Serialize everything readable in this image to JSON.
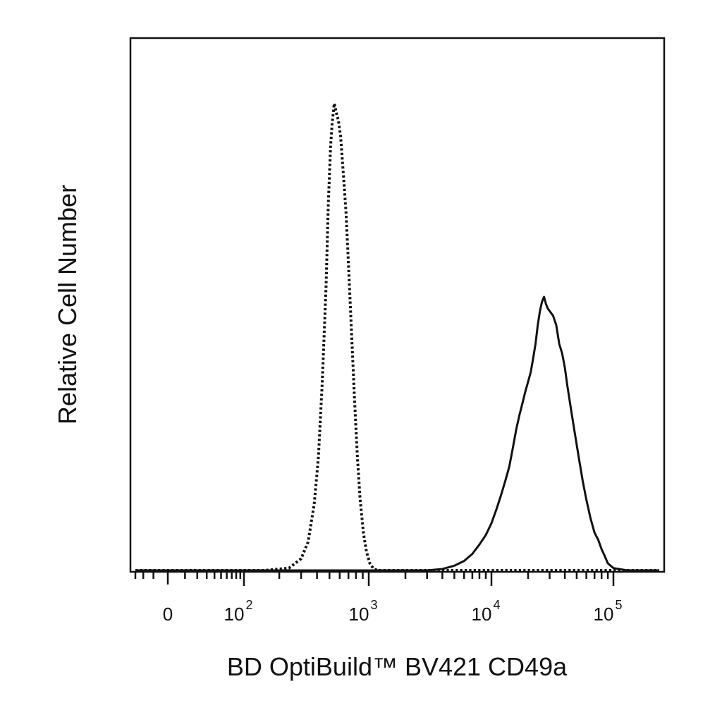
{
  "chart_data": {
    "type": "line",
    "title": "",
    "xlabel": "BD OptiBuild™  BV421 CD49a",
    "ylabel": "Relative Cell Number",
    "x_scale": "biexponential",
    "xlim": [
      -30,
      180000
    ],
    "ylim": [
      0,
      100
    ],
    "y_ticks": "none",
    "grid": false,
    "legend": "none",
    "x_tick_labels": [
      {
        "value": 0,
        "base": "0",
        "exp": ""
      },
      {
        "value": 100,
        "base": "10",
        "exp": "2"
      },
      {
        "value": 1000,
        "base": "10",
        "exp": "3"
      },
      {
        "value": 10000,
        "base": "10",
        "exp": "4"
      },
      {
        "value": 100000,
        "base": "10",
        "exp": "5"
      }
    ],
    "series": [
      {
        "style": "dotted",
        "color": "#111111",
        "points": [
          [
            -30,
            0
          ],
          [
            0,
            0
          ],
          [
            50,
            0
          ],
          [
            150,
            0
          ],
          [
            240,
            0.5
          ],
          [
            300,
            2.5
          ],
          [
            340,
            6
          ],
          [
            380,
            14
          ],
          [
            410,
            24
          ],
          [
            440,
            40
          ],
          [
            470,
            60
          ],
          [
            490,
            78
          ],
          [
            510,
            90
          ],
          [
            525,
            95
          ],
          [
            545,
            99
          ],
          [
            565,
            97
          ],
          [
            585,
            95.5
          ],
          [
            610,
            92
          ],
          [
            640,
            84
          ],
          [
            670,
            76
          ],
          [
            700,
            65
          ],
          [
            740,
            50
          ],
          [
            780,
            36
          ],
          [
            820,
            24
          ],
          [
            860,
            15
          ],
          [
            910,
            8
          ],
          [
            960,
            4
          ],
          [
            1020,
            1.5
          ],
          [
            1100,
            0.3
          ],
          [
            1200,
            0
          ],
          [
            5000,
            0
          ],
          [
            180000,
            0
          ]
        ]
      },
      {
        "style": "solid",
        "color": "#111111",
        "points": [
          [
            -30,
            0
          ],
          [
            1000,
            0
          ],
          [
            3000,
            0
          ],
          [
            4000,
            0.3
          ],
          [
            5000,
            1
          ],
          [
            6000,
            2
          ],
          [
            7000,
            3.5
          ],
          [
            8000,
            5.5
          ],
          [
            9000,
            7.5
          ],
          [
            10000,
            10
          ],
          [
            11000,
            13
          ],
          [
            12000,
            16
          ],
          [
            13000,
            19
          ],
          [
            14000,
            22
          ],
          [
            15000,
            26
          ],
          [
            16000,
            30
          ],
          [
            17000,
            33
          ],
          [
            18000,
            35.5
          ],
          [
            19000,
            38
          ],
          [
            20000,
            40
          ],
          [
            21000,
            42
          ],
          [
            22000,
            45
          ],
          [
            23000,
            48
          ],
          [
            24000,
            52
          ],
          [
            25000,
            55
          ],
          [
            26000,
            57
          ],
          [
            27000,
            58
          ],
          [
            28000,
            56.5
          ],
          [
            29000,
            55.5
          ],
          [
            30000,
            55
          ],
          [
            32000,
            54
          ],
          [
            34000,
            52
          ],
          [
            36000,
            48
          ],
          [
            38000,
            46
          ],
          [
            40000,
            43
          ],
          [
            42000,
            39
          ],
          [
            45000,
            34
          ],
          [
            48000,
            29.5
          ],
          [
            52000,
            24
          ],
          [
            56000,
            19
          ],
          [
            60000,
            15
          ],
          [
            65000,
            11
          ],
          [
            70000,
            8
          ],
          [
            75000,
            6.5
          ],
          [
            80000,
            4.5
          ],
          [
            85000,
            3
          ],
          [
            90000,
            1.5
          ],
          [
            100000,
            0.5
          ],
          [
            120000,
            0
          ],
          [
            180000,
            0
          ]
        ]
      }
    ]
  }
}
